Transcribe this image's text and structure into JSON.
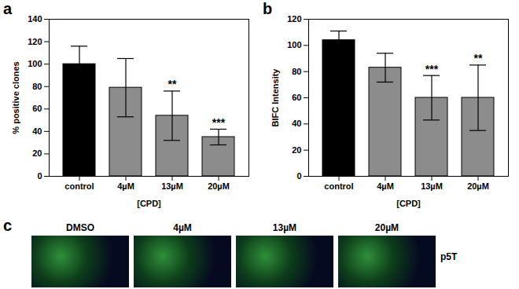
{
  "chart_data": [
    {
      "type": "bar",
      "title": "a",
      "categories": [
        "control",
        "4µM",
        "13µM",
        "20µM"
      ],
      "values": [
        100,
        79,
        54,
        35
      ],
      "errors": [
        16,
        26,
        22,
        7
      ],
      "annotations": [
        null,
        null,
        "**",
        "***"
      ],
      "colors": [
        "#000000",
        "#8c8c8c",
        "#8c8c8c",
        "#8c8c8c"
      ],
      "x_label": "[CPD]",
      "y_label": "% positive clones",
      "ylim": [
        0,
        140
      ],
      "yticks": [
        0,
        20,
        40,
        60,
        80,
        100,
        120,
        140
      ]
    },
    {
      "type": "bar",
      "title": "b",
      "categories": [
        "control",
        "4µM",
        "13µM",
        "20µM"
      ],
      "values": [
        104,
        83,
        60,
        60
      ],
      "errors": [
        7,
        11,
        17,
        25
      ],
      "annotations": [
        null,
        null,
        "***",
        "**"
      ],
      "colors": [
        "#000000",
        "#8c8c8c",
        "#8c8c8c",
        "#8c8c8c"
      ],
      "x_label": "[CPD]",
      "y_label": "BIFC Intensity",
      "ylim": [
        0,
        120
      ],
      "yticks": [
        0,
        20,
        40,
        60,
        80,
        100,
        120
      ]
    }
  ],
  "images": {
    "panel": "c",
    "labels": [
      "DMSO",
      "4µM",
      "13µM",
      "20µM"
    ],
    "side_label": "p5T"
  }
}
